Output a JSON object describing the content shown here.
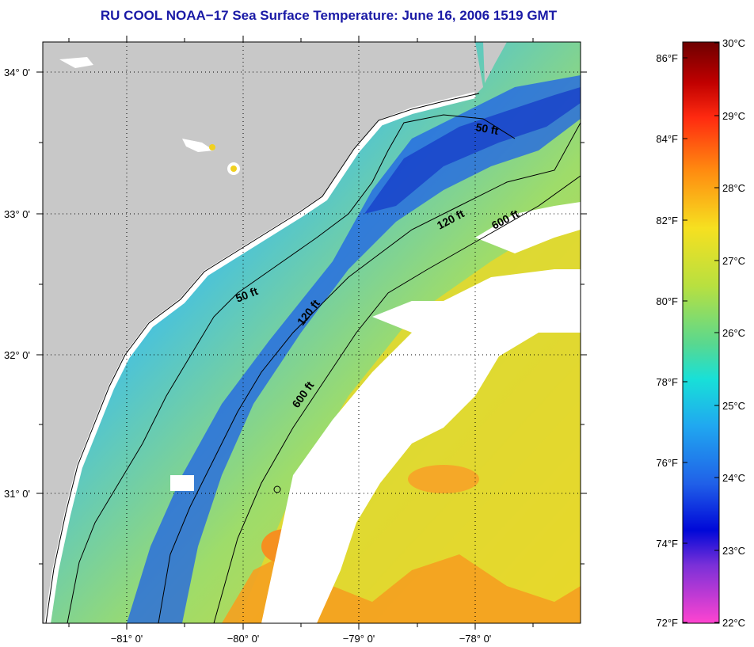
{
  "title": "RU COOL  NOAA−17  Sea Surface Temperature:  June 16, 2006 1519 GMT",
  "map": {
    "lat_labels": [
      "34° 0'",
      "33° 0'",
      "32° 0'",
      "31° 0'"
    ],
    "lon_labels": [
      "−81° 0'",
      "−80° 0'",
      "−79° 0'",
      "−78° 0'"
    ],
    "contour_labels": [
      "50 ft",
      "50 ft",
      "120 ft",
      "120 ft",
      "600 ft",
      "600 ft"
    ],
    "colors": {
      "land": "#c8c8c8",
      "cloud": "#ffffff",
      "cold": "#1e4fe0",
      "cool": "#2fa6f0",
      "mid": "#6fd0a8",
      "warm": "#e8e02a",
      "hot": "#f5a020"
    }
  },
  "colorbar": {
    "fahrenheit": [
      "86°F",
      "84°F",
      "82°F",
      "80°F",
      "78°F",
      "76°F",
      "74°F",
      "72°F"
    ],
    "celsius": [
      "30°C",
      "29°C",
      "28°C",
      "27°C",
      "26°C",
      "25°C",
      "24°C",
      "23°C",
      "22°C"
    ]
  }
}
